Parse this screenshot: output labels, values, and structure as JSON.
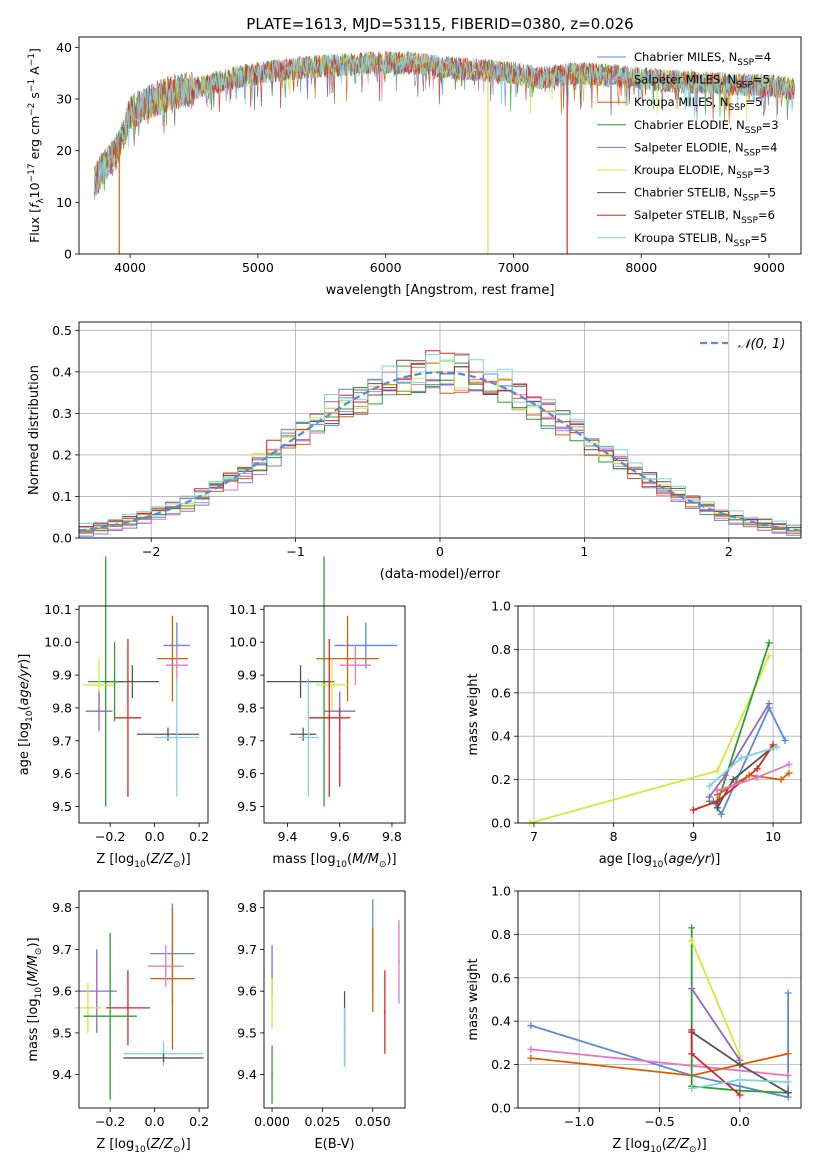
{
  "figure_title": "PLATE=1613, MJD=53115, FIBERID=0380, z=0.026",
  "chart_data": [
    {
      "id": "spectrum",
      "type": "line",
      "title": "PLATE=1613, MJD=53115, FIBERID=0380, z=0.026",
      "xlabel": "wavelength [Angstrom, rest frame]",
      "ylabel": "Flux [f_λ 10^-17 erg cm^-2 s^-1 A^-1]",
      "xlim": [
        3600,
        9250
      ],
      "ylim": [
        0,
        42
      ],
      "xticks": [
        4000,
        5000,
        6000,
        7000,
        8000,
        9000
      ],
      "yticks": [
        0,
        10,
        20,
        30,
        40
      ],
      "grid": false,
      "legend_position": "top-right",
      "x_range": [
        3720,
        9200
      ],
      "continuum": [
        [
          3720,
          14
        ],
        [
          3800,
          17
        ],
        [
          3900,
          20
        ],
        [
          4000,
          27
        ],
        [
          4100,
          29
        ],
        [
          4300,
          31
        ],
        [
          4500,
          32
        ],
        [
          4800,
          34
        ],
        [
          5000,
          35
        ],
        [
          5300,
          36
        ],
        [
          5600,
          36.5
        ],
        [
          5900,
          37
        ],
        [
          6200,
          37
        ],
        [
          6500,
          36
        ],
        [
          6800,
          35.5
        ],
        [
          7000,
          35
        ],
        [
          7200,
          34
        ],
        [
          7500,
          35
        ],
        [
          7800,
          34.5
        ],
        [
          8200,
          33.5
        ],
        [
          8600,
          33
        ],
        [
          9000,
          32.5
        ],
        [
          9200,
          32
        ]
      ],
      "features": [
        {
          "series": "Kroupa MILES",
          "x": 3915,
          "y_min": 0
        },
        {
          "series": "Kroupa ELODIE",
          "x": 6800,
          "y_min": 0
        },
        {
          "series": "Salpeter STELIB",
          "x": 7420,
          "y_min": 0
        }
      ],
      "series": [
        {
          "name": "Chabrier MILES",
          "nssp": "4",
          "color": "#5b8bd6"
        },
        {
          "name": "Salpeter MILES",
          "nssp": "5",
          "color": "#e377c2"
        },
        {
          "name": "Kroupa MILES",
          "nssp": "5",
          "color": "#d95f02"
        },
        {
          "name": "Chabrier ELODIE",
          "nssp": "3",
          "color": "#2ca02c"
        },
        {
          "name": "Salpeter ELODIE",
          "nssp": "4",
          "color": "#9467bd"
        },
        {
          "name": "Kroupa ELODIE",
          "nssp": "3",
          "color": "#d4e83a"
        },
        {
          "name": "Chabrier STELIB",
          "nssp": "5",
          "color": "#555555"
        },
        {
          "name": "Salpeter STELIB",
          "nssp": "6",
          "color": "#d62728"
        },
        {
          "name": "Kroupa STELIB",
          "nssp": "5",
          "color": "#7fd3de"
        }
      ]
    },
    {
      "id": "residuals",
      "type": "histogram",
      "xlabel": "(data-model)/error",
      "ylabel": "Normed distribution",
      "xlim": [
        -2.5,
        2.5
      ],
      "ylim": [
        0,
        0.52
      ],
      "xticks": [
        -2,
        -1,
        0,
        1,
        2
      ],
      "yticks": [
        0.0,
        0.1,
        0.2,
        0.3,
        0.4,
        0.5
      ],
      "grid": true,
      "legend_position": "top-right",
      "legend_label": "𝒩(0, 1)",
      "bin_width": 0.1,
      "reference_curve": "normal(0,1)",
      "colors": [
        "#5b8bd6",
        "#e377c2",
        "#d95f02",
        "#2ca02c",
        "#9467bd",
        "#d4e83a",
        "#555555",
        "#d62728",
        "#7fd3de"
      ]
    },
    {
      "id": "age_vs_Z",
      "type": "errorbar",
      "xlabel": "Z [log10(Z/Z⊙)]",
      "ylabel": "age  [log10(age/yr)]",
      "xlim": [
        -0.34,
        0.24
      ],
      "ylim": [
        9.45,
        10.11
      ],
      "xticks": [
        -0.2,
        0.0,
        0.2
      ],
      "yticks": [
        9.5,
        9.6,
        9.7,
        9.8,
        9.9,
        10.0,
        10.1
      ],
      "grid": false,
      "points": [
        {
          "color": "#5b8bd6",
          "x": 0.1,
          "xerr": 0.06,
          "y": 9.99,
          "yerr": 0.07
        },
        {
          "color": "#d95f02",
          "x": 0.08,
          "xerr": 0.07,
          "y": 9.95,
          "yerr": 0.13
        },
        {
          "color": "#e377c2",
          "x": 0.1,
          "xerr": 0.05,
          "y": 9.93,
          "yerr": 0.06
        },
        {
          "color": "#2ca02c",
          "x": -0.22,
          "xerr": 0.08,
          "y": 9.88,
          "yerr": 0.38
        },
        {
          "color": "#d4e83a",
          "x": -0.25,
          "xerr": 0.07,
          "y": 9.87,
          "yerr": 0.08
        },
        {
          "color": "#555555",
          "x": -0.1,
          "xerr": 0.12,
          "y": 9.88,
          "yerr": 0.05
        },
        {
          "color": "#9467bd",
          "x": -0.25,
          "xerr": 0.06,
          "y": 9.79,
          "yerr": 0.06
        },
        {
          "color": "#d62728",
          "x": -0.12,
          "xerr": 0.06,
          "y": 9.77,
          "yerr": 0.24
        },
        {
          "color": "#555555",
          "x": 0.06,
          "xerr": 0.14,
          "y": 9.72,
          "yerr": 0.02
        },
        {
          "color": "#7fd3de",
          "x": 0.1,
          "xerr": 0.1,
          "y": 9.71,
          "yerr": 0.18
        },
        {
          "color": "#2ca02c",
          "x": -0.18,
          "xerr": 0.02,
          "y": 9.88,
          "yerr": 0.12
        }
      ]
    },
    {
      "id": "age_vs_mass",
      "type": "errorbar",
      "xlabel": "mass [log10(M/M⊙)]",
      "ylabel": "",
      "xlim": [
        9.31,
        9.85
      ],
      "ylim": [
        9.45,
        10.11
      ],
      "xticks": [
        9.4,
        9.6,
        9.8
      ],
      "yticks": [
        9.5,
        9.6,
        9.7,
        9.8,
        9.9,
        10.0,
        10.1
      ],
      "grid": false,
      "points": [
        {
          "color": "#5b8bd6",
          "x": 9.7,
          "xerr": 0.12,
          "y": 9.99,
          "yerr": 0.07
        },
        {
          "color": "#d95f02",
          "x": 9.63,
          "xerr": 0.12,
          "y": 9.95,
          "yerr": 0.13
        },
        {
          "color": "#e377c2",
          "x": 9.66,
          "xerr": 0.06,
          "y": 9.93,
          "yerr": 0.06
        },
        {
          "color": "#2ca02c",
          "x": 9.54,
          "xerr": 0.03,
          "y": 9.88,
          "yerr": 0.38
        },
        {
          "color": "#555555",
          "x": 9.45,
          "xerr": 0.13,
          "y": 9.88,
          "yerr": 0.05
        },
        {
          "color": "#d4e83a",
          "x": 9.57,
          "xerr": 0.06,
          "y": 9.87,
          "yerr": 0.08
        },
        {
          "color": "#9467bd",
          "x": 9.6,
          "xerr": 0.06,
          "y": 9.79,
          "yerr": 0.06
        },
        {
          "color": "#d62728",
          "x": 9.56,
          "xerr": 0.08,
          "y": 9.77,
          "yerr": 0.24
        },
        {
          "color": "#555555",
          "x": 9.46,
          "xerr": 0.05,
          "y": 9.72,
          "yerr": 0.02
        },
        {
          "color": "#7fd3de",
          "x": 9.48,
          "xerr": 0.04,
          "y": 9.71,
          "yerr": 0.18
        },
        {
          "color": "#d62728",
          "x": 9.6,
          "xerr": 0.0,
          "y": 9.68,
          "yerr": 0.12
        }
      ]
    },
    {
      "id": "weight_vs_age",
      "type": "line",
      "xlabel": "age  [log10(age/yr)]",
      "ylabel": "mass weight",
      "xlim": [
        6.8,
        10.35
      ],
      "ylim": [
        0,
        1.0
      ],
      "xticks": [
        7,
        8,
        9,
        10
      ],
      "yticks": [
        0.0,
        0.2,
        0.4,
        0.6,
        0.8,
        1.0
      ],
      "grid": true,
      "series": [
        {
          "color": "#d4e83a",
          "x": [
            6.95,
            9.3,
            9.95
          ],
          "y": [
            0.0,
            0.24,
            0.77
          ]
        },
        {
          "color": "#2ca02c",
          "x": [
            9.2,
            9.3,
            9.95
          ],
          "y": [
            0.1,
            0.09,
            0.83
          ]
        },
        {
          "color": "#9467bd",
          "x": [
            9.2,
            9.4,
            9.95
          ],
          "y": [
            0.12,
            0.22,
            0.55
          ]
        },
        {
          "color": "#5b8bd6",
          "x": [
            9.25,
            9.35,
            9.95,
            10.15
          ],
          "y": [
            0.1,
            0.04,
            0.53,
            0.38
          ]
        },
        {
          "color": "#555555",
          "x": [
            9.3,
            9.5,
            10.0
          ],
          "y": [
            0.07,
            0.2,
            0.35
          ]
        },
        {
          "color": "#d62728",
          "x": [
            9.0,
            9.3,
            9.8,
            10.0
          ],
          "y": [
            0.06,
            0.1,
            0.25,
            0.36
          ]
        },
        {
          "color": "#d95f02",
          "x": [
            9.3,
            9.7,
            10.1,
            10.2
          ],
          "y": [
            0.13,
            0.22,
            0.2,
            0.23
          ]
        },
        {
          "color": "#e377c2",
          "x": [
            9.3,
            9.8,
            10.2
          ],
          "y": [
            0.15,
            0.21,
            0.27
          ]
        },
        {
          "color": "#7fd3de",
          "x": [
            9.2,
            9.6,
            10.05
          ],
          "y": [
            0.17,
            0.3,
            0.35
          ]
        }
      ]
    },
    {
      "id": "mass_vs_Z",
      "type": "errorbar",
      "xlabel": "Z [log10(Z/Z⊙)]",
      "ylabel": "mass [log10(M/M⊙)]",
      "xlim": [
        -0.34,
        0.24
      ],
      "ylim": [
        9.32,
        9.84
      ],
      "xticks": [
        -0.2,
        0.0,
        0.2
      ],
      "yticks": [
        9.4,
        9.5,
        9.6,
        9.7,
        9.8
      ],
      "grid": false,
      "points": [
        {
          "color": "#5b8bd6",
          "x": 0.08,
          "xerr": 0.1,
          "y": 9.69,
          "yerr": 0.12
        },
        {
          "color": "#d95f02",
          "x": 0.08,
          "xerr": 0.1,
          "y": 9.63,
          "yerr": 0.17
        },
        {
          "color": "#e377c2",
          "x": 0.05,
          "xerr": 0.08,
          "y": 9.66,
          "yerr": 0.05
        },
        {
          "color": "#9467bd",
          "x": -0.26,
          "xerr": 0.09,
          "y": 9.6,
          "yerr": 0.1
        },
        {
          "color": "#d62728",
          "x": -0.12,
          "xerr": 0.1,
          "y": 9.56,
          "yerr": 0.09
        },
        {
          "color": "#d4e83a",
          "x": -0.3,
          "xerr": 0.06,
          "y": 9.56,
          "yerr": 0.06
        },
        {
          "color": "#2ca02c",
          "x": -0.2,
          "xerr": 0.12,
          "y": 9.54,
          "yerr": 0.2
        },
        {
          "color": "#7fd3de",
          "x": 0.04,
          "xerr": 0.18,
          "y": 9.45,
          "yerr": 0.03
        },
        {
          "color": "#555555",
          "x": 0.04,
          "xerr": 0.18,
          "y": 9.44,
          "yerr": 0.01
        }
      ]
    },
    {
      "id": "mass_vs_ebv",
      "type": "errorbar",
      "xlabel": "E(B-V)",
      "ylabel": "",
      "xlim": [
        -0.004,
        0.066
      ],
      "ylim": [
        9.32,
        9.84
      ],
      "xticks": [
        0.0,
        0.025,
        0.05
      ],
      "xtick_labels": [
        "0.000",
        "0.025",
        "0.050"
      ],
      "yticks": [
        9.4,
        9.5,
        9.6,
        9.7,
        9.8
      ],
      "grid": false,
      "points": [
        {
          "color": "#9467bd",
          "x": 0.0,
          "y": 9.65,
          "yerr": 0.06
        },
        {
          "color": "#d4e83a",
          "x": 0.0,
          "y": 9.57,
          "yerr": 0.06
        },
        {
          "color": "#2ca02c",
          "x": 0.0,
          "y": 9.4,
          "yerr": 0.07
        },
        {
          "color": "#555555",
          "x": 0.036,
          "y": 9.51,
          "yerr": 0.09
        },
        {
          "color": "#7fd3de",
          "x": 0.036,
          "y": 9.49,
          "yerr": 0.07
        },
        {
          "color": "#5b8bd6",
          "x": 0.05,
          "y": 9.71,
          "yerr": 0.11
        },
        {
          "color": "#d95f02",
          "x": 0.05,
          "y": 9.65,
          "yerr": 0.1
        },
        {
          "color": "#d62728",
          "x": 0.056,
          "y": 9.55,
          "yerr": 0.1
        },
        {
          "color": "#e377c2",
          "x": 0.063,
          "y": 9.67,
          "yerr": 0.1
        }
      ]
    },
    {
      "id": "weight_vs_Z",
      "type": "line",
      "xlabel": "Z [log10(Z/Z⊙)]",
      "ylabel": "mass weight",
      "xlim": [
        -1.38,
        0.38
      ],
      "ylim": [
        0,
        1.0
      ],
      "xticks": [
        -1.0,
        -0.5,
        0.0
      ],
      "yticks": [
        0.0,
        0.2,
        0.4,
        0.6,
        0.8,
        1.0
      ],
      "grid": true,
      "series": [
        {
          "color": "#5b8bd6",
          "x": [
            -1.3,
            -0.3,
            0.0,
            0.3,
            0.3
          ],
          "y": [
            0.38,
            0.15,
            0.1,
            0.05,
            0.53
          ]
        },
        {
          "color": "#e377c2",
          "x": [
            -1.3,
            0.3
          ],
          "y": [
            0.27,
            0.15
          ]
        },
        {
          "color": "#d95f02",
          "x": [
            -1.3,
            -0.3,
            0.0,
            0.3
          ],
          "y": [
            0.23,
            0.15,
            0.2,
            0.25
          ]
        },
        {
          "color": "#2ca02c",
          "x": [
            -0.3,
            -0.3,
            0.0,
            0.3
          ],
          "y": [
            0.83,
            0.1,
            0.08,
            0.07
          ]
        },
        {
          "color": "#d4e83a",
          "x": [
            -0.3,
            0.0
          ],
          "y": [
            0.77,
            0.24
          ]
        },
        {
          "color": "#9467bd",
          "x": [
            -0.3,
            0.0
          ],
          "y": [
            0.55,
            0.22
          ]
        },
        {
          "color": "#555555",
          "x": [
            -0.3,
            0.0,
            0.3
          ],
          "y": [
            0.35,
            0.2,
            0.07
          ]
        },
        {
          "color": "#d62728",
          "x": [
            -0.3,
            -0.3,
            0.0
          ],
          "y": [
            0.36,
            0.25,
            0.06
          ]
        },
        {
          "color": "#7fd3de",
          "x": [
            -0.3,
            0.0,
            0.3
          ],
          "y": [
            0.09,
            0.13,
            0.12
          ]
        }
      ]
    }
  ]
}
